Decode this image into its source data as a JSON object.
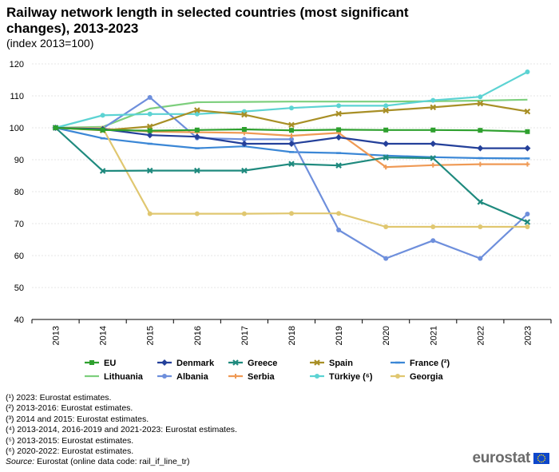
{
  "title": "Railway network length in selected countries (most significant changes), 2013-2023",
  "subtitle": "(index 2013=100)",
  "chart_data": {
    "type": "line",
    "categories": [
      "2013",
      "2014",
      "2015",
      "2016",
      "2017",
      "2018",
      "2019",
      "2020",
      "2021",
      "2022",
      "2023"
    ],
    "y_ticks": [
      "40",
      "50",
      "60",
      "70",
      "80",
      "90",
      "100",
      "110",
      "120"
    ],
    "ylim": [
      40,
      120
    ],
    "grid": true,
    "legend_position": "bottom",
    "series": [
      {
        "name": "EU",
        "color": "#2ea02e",
        "marker": "square",
        "values": [
          100,
          99.3,
          99.1,
          99.3,
          99.5,
          99.2,
          99.4,
          99.3,
          99.3,
          99.2,
          98.8
        ]
      },
      {
        "name": "Denmark",
        "color": "#24409a",
        "marker": "diamond",
        "values": [
          100,
          99.6,
          97.7,
          97.2,
          95.0,
          95.0,
          97.0,
          95.0,
          95.0,
          93.6,
          93.6
        ]
      },
      {
        "name": "Greece",
        "color": "#1f8a7e",
        "marker": "x",
        "values": [
          100,
          86.5,
          86.6,
          86.6,
          86.6,
          88.7,
          88.2,
          90.7,
          90.5,
          76.8,
          70.5
        ]
      },
      {
        "name": "Spain",
        "color": "#a88f26",
        "marker": "x",
        "values": [
          100,
          99.2,
          100.4,
          105.5,
          104.1,
          100.9,
          104.4,
          105.4,
          106.4,
          107.6,
          105.1
        ]
      },
      {
        "name": "France (²)",
        "color": "#3b87d6",
        "marker": "dash",
        "values": [
          100,
          96.7,
          95.0,
          93.6,
          94.2,
          92.4,
          92.1,
          91.3,
          90.8,
          90.5,
          90.4
        ]
      },
      {
        "name": "Lithuania",
        "color": "#7dcf7d",
        "marker": "none",
        "values": [
          100,
          100.3,
          106.0,
          108.0,
          108.1,
          108.2,
          108.2,
          108.2,
          108.3,
          108.5,
          108.8
        ]
      },
      {
        "name": "Albania",
        "color": "#6e8fdc",
        "marker": "circle",
        "values": [
          100,
          99.8,
          109.5,
          96.8,
          96.4,
          96.4,
          68.0,
          59.1,
          64.7,
          59.1,
          73.0
        ]
      },
      {
        "name": "Serbia",
        "color": "#ef9a55",
        "marker": "plus",
        "values": [
          100,
          99.7,
          98.8,
          98.6,
          98.4,
          97.5,
          98.4,
          87.7,
          88.3,
          88.6,
          88.6
        ]
      },
      {
        "name": "Türkiye (⁶)",
        "color": "#5cd3d3",
        "marker": "circle",
        "values": [
          100,
          103.9,
          104.3,
          104.3,
          105.1,
          106.2,
          106.9,
          106.9,
          108.6,
          109.7,
          117.5
        ]
      },
      {
        "name": "Georgia",
        "color": "#e0c770",
        "marker": "circle",
        "values": [
          100,
          99.9,
          73.1,
          73.1,
          73.1,
          73.2,
          73.2,
          69.0,
          69.0,
          69.0,
          69.0
        ]
      }
    ]
  },
  "notes": [
    "(¹) 2023: Eurostat estimates.",
    "(²) 2013-2016: Eurostat estimates.",
    "(³) 2014 and 2015: Eurostat estimates.",
    "(⁴) 2013-2014, 2016-2019 and 2021-2023: Eurostat estimates.",
    "(⁵) 2013-2015: Eurostat estimates.",
    "(⁶) 2020-2022: Eurostat estimates."
  ],
  "source": {
    "label": "Source:",
    "text": " Eurostat (online data code: rail_if_line_tr)"
  },
  "logo": {
    "text": "eurostat",
    "icon": "eu-flag-icon",
    "flag_color": "#0e47cb",
    "star_color": "#ffdd00"
  }
}
